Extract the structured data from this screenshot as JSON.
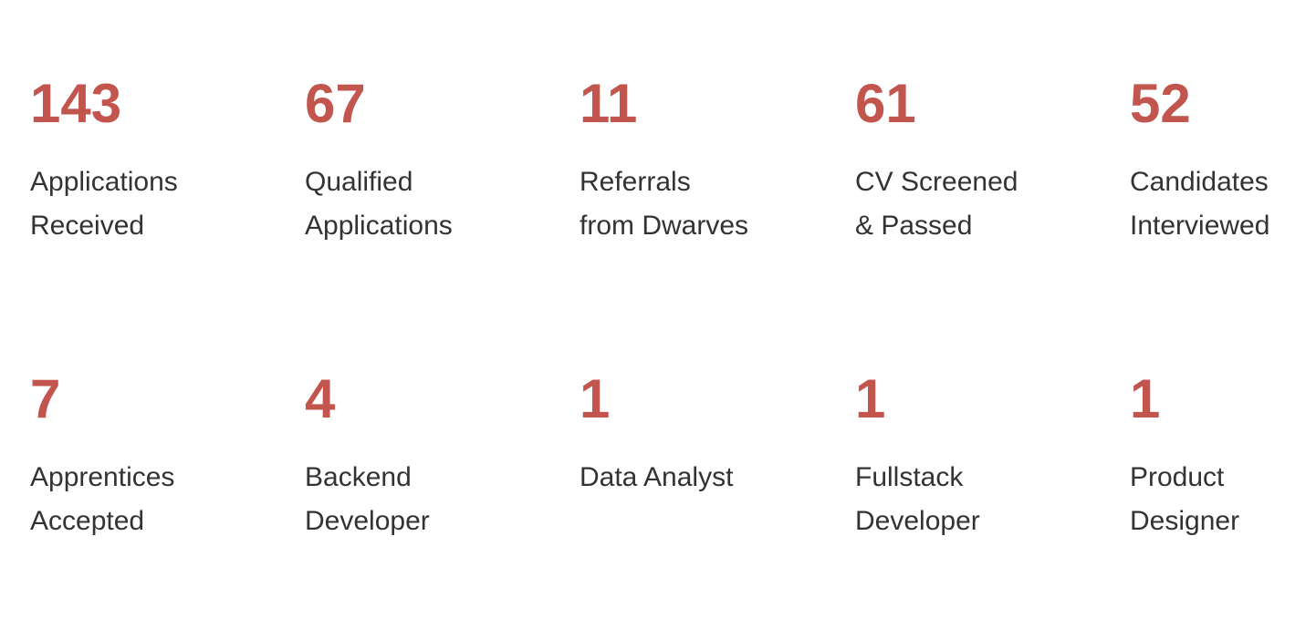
{
  "accent_color": "#c2554d",
  "text_color": "#333333",
  "rows": [
    {
      "cards": [
        {
          "value": "143",
          "label_lines": [
            "Applications",
            "Received"
          ]
        },
        {
          "value": "67",
          "label_lines": [
            "Qualified",
            "Applications"
          ]
        },
        {
          "value": "11",
          "label_lines": [
            "Referrals",
            "from Dwarves"
          ]
        },
        {
          "value": "61",
          "label_lines": [
            "CV Screened",
            "& Passed"
          ]
        },
        {
          "value": "52",
          "label_lines": [
            "Candidates",
            "Interviewed"
          ]
        }
      ]
    },
    {
      "cards": [
        {
          "value": "7",
          "label_lines": [
            "Apprentices",
            "Accepted"
          ]
        },
        {
          "value": "4",
          "label_lines": [
            "Backend",
            "Developer"
          ]
        },
        {
          "value": "1",
          "label_lines": [
            "Data Analyst",
            ""
          ]
        },
        {
          "value": "1",
          "label_lines": [
            "Fullstack",
            "Developer"
          ]
        },
        {
          "value": "1",
          "label_lines": [
            "Product",
            "Designer"
          ]
        }
      ]
    }
  ]
}
